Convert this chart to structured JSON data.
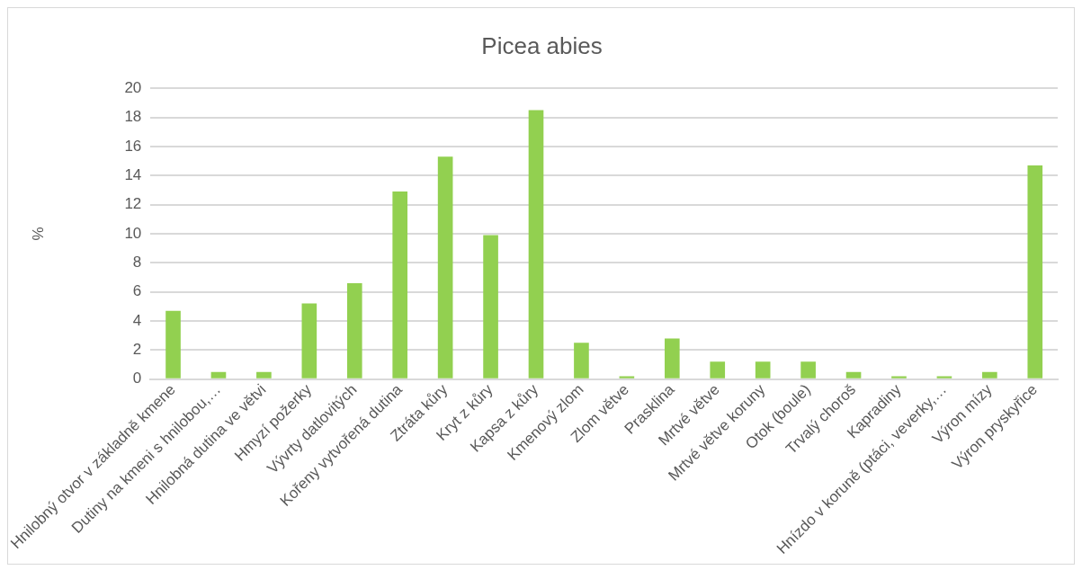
{
  "chart_data": {
    "type": "bar",
    "title": "Picea abies",
    "ylabel": "%",
    "categories": [
      "Hnilobný otvor v základně kmene",
      "Dutiny na kmeni s hnilobou,…",
      "Hnilobná dutina ve větvi",
      "Hmyzí požerky",
      "Vývrty datlovitých",
      "Kořeny vytvořená dutina",
      "Ztráta kůry",
      "Kryt z kůry",
      "Kapsa z kůry",
      "Kmenový zlom",
      "Zlom větve",
      "Prasklina",
      "Mrtvé větve",
      "Mrtvé větve koruny",
      "Otok (boule)",
      "Trvalý choroš",
      "Kapradiny",
      "Hnízdo v koruně (ptáci, veverky,…",
      "Výron mízy",
      "Výron pryskyřice"
    ],
    "values": [
      4.7,
      0.5,
      0.5,
      5.2,
      6.6,
      12.9,
      15.3,
      9.9,
      18.5,
      2.5,
      0.2,
      2.8,
      1.2,
      1.2,
      1.2,
      0.5,
      0.2,
      0.2,
      0.5,
      14.7
    ],
    "color": "#92d050",
    "ylim": [
      0,
      20
    ],
    "yticks": [
      0,
      2,
      4,
      6,
      8,
      10,
      12,
      14,
      16,
      18,
      20
    ],
    "grid": "y"
  }
}
